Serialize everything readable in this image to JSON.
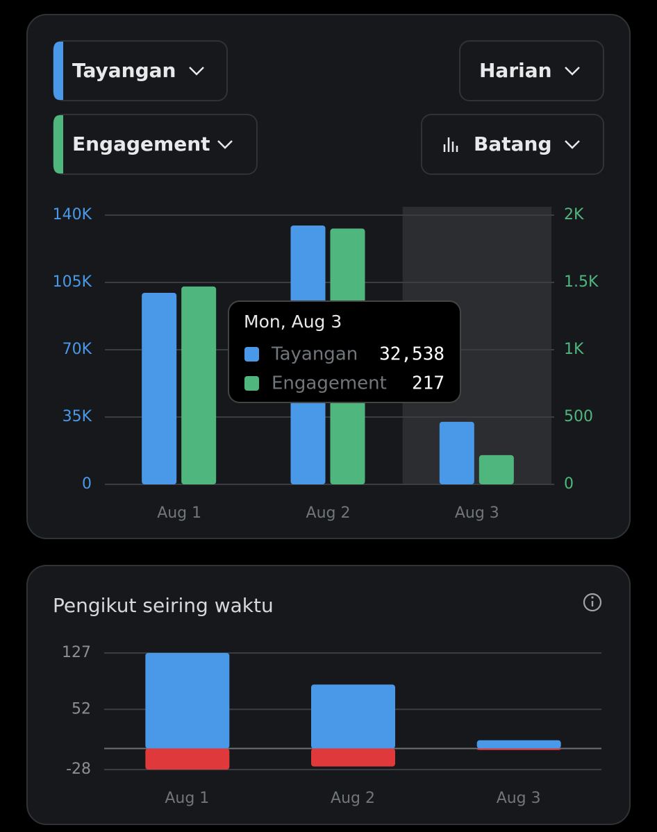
{
  "controls": {
    "metric_1": "Tayangan",
    "metric_2": "Engagement",
    "period": "Harian",
    "chart_style": "Batang"
  },
  "chart_data": [
    {
      "type": "bar",
      "categories": [
        "Aug 1",
        "Aug 2",
        "Aug 3"
      ],
      "series": [
        {
          "name": "Tayangan",
          "color": "#4a99e9",
          "values": [
            99600,
            134600,
            32538
          ],
          "value_labels": [
            null,
            null,
            "32,538"
          ]
        },
        {
          "name": "Engagement",
          "color": "#4fb77d",
          "axis": "y2",
          "values": [
            1470,
            1900,
            217
          ],
          "value_labels": [
            null,
            null,
            "217"
          ]
        }
      ],
      "ylim": [
        0,
        140000
      ],
      "yticks": [
        0,
        {
          "value": 35000,
          "label": "35K"
        },
        {
          "value": 70000,
          "label": "70K"
        },
        {
          "value": 105000,
          "label": "105K"
        },
        {
          "value": 140000,
          "label": "140K"
        }
      ],
      "y2lim": [
        0,
        2000
      ],
      "y2ticks": [
        0,
        500,
        {
          "value": 1000,
          "label": "1K"
        },
        {
          "value": 1500,
          "label": "1.5K"
        },
        {
          "value": 2000,
          "label": "2K"
        }
      ],
      "grid": true,
      "highlight_index": 2,
      "tooltip": {
        "title": "Mon, Aug 3"
      }
    },
    {
      "type": "stacked_bar",
      "title": "Pengikut seiring waktu",
      "categories": [
        "Aug 1",
        "Aug 2",
        "Aug 3"
      ],
      "series": [
        {
          "color": "#4a99e9",
          "values": [
            127,
            85,
            11
          ]
        },
        {
          "color": "#e0393b",
          "values": [
            -28,
            -24,
            -2
          ]
        }
      ],
      "ylim": [
        -28,
        127
      ],
      "yticks": [
        -28,
        52,
        127
      ],
      "grid": true
    }
  ]
}
